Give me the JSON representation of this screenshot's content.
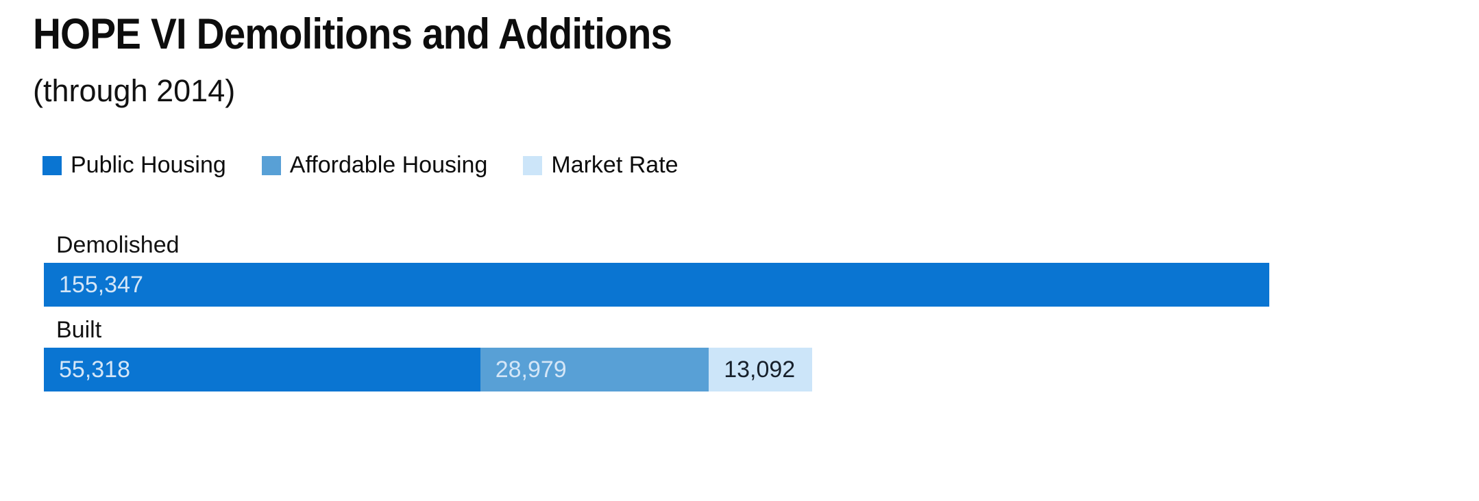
{
  "chart_data": {
    "type": "bar",
    "orientation": "horizontal",
    "stacked": true,
    "title": "HOPE VI Demolitions and Additions",
    "subtitle": "(through 2014)",
    "legend_position": "top",
    "grid": false,
    "axes_visible": false,
    "categories": [
      "Demolished",
      "Built"
    ],
    "series": [
      {
        "name": "Public Housing",
        "color": "#0a75d2",
        "value_text_color": "#d4e6f7",
        "values": [
          155347,
          55318
        ]
      },
      {
        "name": "Affordable Housing",
        "color": "#58a0d6",
        "value_text_color": "#d4e6f7",
        "values": [
          0,
          28979
        ]
      },
      {
        "name": "Market Rate",
        "color": "#cce5f9",
        "value_text_color": "#17202b",
        "values": [
          0,
          13092
        ]
      }
    ],
    "value_labels": [
      [
        "155,347"
      ],
      [
        "55,318",
        "28,979",
        "13,092"
      ]
    ],
    "xmax": 155347
  },
  "colors": {
    "background": "#ffffff",
    "title_text": "#0d0d0d",
    "label_text": "#121212",
    "public_housing": "#0a75d2",
    "affordable_housing": "#58a0d6",
    "market_rate": "#cce5f9"
  }
}
